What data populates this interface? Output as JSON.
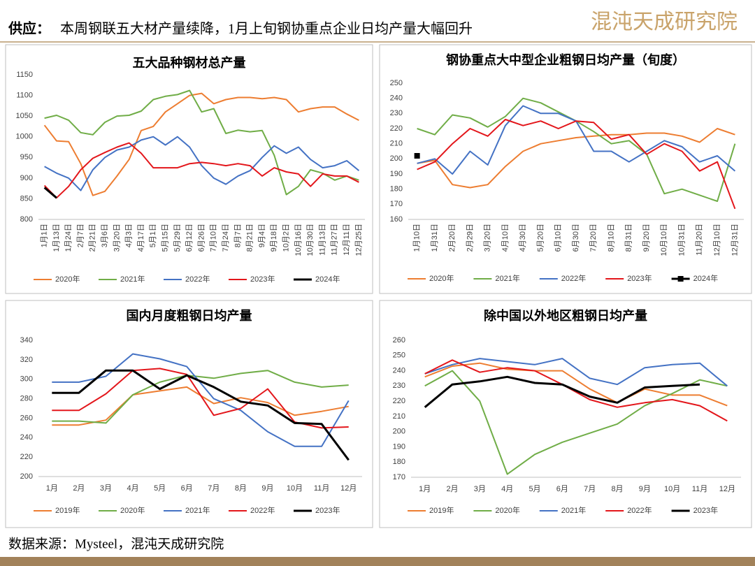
{
  "header": {
    "label": "供应：",
    "title": "本周钢联五大材产量续降，1月上旬钢协重点企业日均产量大幅回升",
    "logo": "混沌天成研究院"
  },
  "footer": {
    "source": "数据来源：Mysteel，混沌天成研究院"
  },
  "chart_data": [
    {
      "type": "line",
      "title": "五大品种钢材总产量",
      "categories": [
        "1月1日",
        "1月13日",
        "1月24日",
        "2月7日",
        "2月21日",
        "3月6日",
        "3月20日",
        "4月3日",
        "4月17日",
        "5月1日",
        "5月15日",
        "5月29日",
        "6月12日",
        "6月26日",
        "7月10日",
        "7月24日",
        "8月7日",
        "8月21日",
        "9月4日",
        "9月18日",
        "10月2日",
        "10月16日",
        "10月30日",
        "11月13日",
        "11月27日",
        "12月11日",
        "12月25日"
      ],
      "ylim": [
        800,
        1150
      ],
      "yticks": [
        800,
        850,
        900,
        950,
        1000,
        1050,
        1100,
        1150
      ],
      "series": [
        {
          "name": "2020年",
          "color": "#ed7d31",
          "values": [
            1028,
            990,
            988,
            935,
            858,
            868,
            905,
            945,
            1015,
            1025,
            1060,
            1080,
            1100,
            1105,
            1080,
            1090,
            1095,
            1095,
            1092,
            1095,
            1090,
            1060,
            1068,
            1072,
            1072,
            1055,
            1040
          ]
        },
        {
          "name": "2021年",
          "color": "#70ad47",
          "values": [
            1045,
            1052,
            1040,
            1010,
            1005,
            1035,
            1050,
            1052,
            1062,
            1090,
            1098,
            1102,
            1112,
            1060,
            1068,
            1008,
            1016,
            1012,
            1015,
            955,
            860,
            880,
            920,
            912,
            895,
            905,
            895
          ]
        },
        {
          "name": "2022年",
          "color": "#4472c4",
          "values": [
            928,
            912,
            900,
            870,
            920,
            950,
            968,
            975,
            992,
            1000,
            980,
            1000,
            975,
            930,
            900,
            885,
            905,
            918,
            950,
            978,
            960,
            975,
            945,
            925,
            930,
            942,
            918
          ]
        },
        {
          "name": "2023年",
          "color": "#e3161b",
          "values": [
            882,
            852,
            880,
            920,
            948,
            962,
            975,
            985,
            960,
            925,
            925,
            925,
            935,
            938,
            935,
            930,
            935,
            930,
            905,
            925,
            915,
            910,
            880,
            910,
            905,
            905,
            890
          ]
        },
        {
          "name": "2024年",
          "color": "#000000",
          "values": [
            877,
            852,
            null,
            null,
            null,
            null,
            null,
            null,
            null,
            null,
            null,
            null,
            null,
            null,
            null,
            null,
            null,
            null,
            null,
            null,
            null,
            null,
            null,
            null,
            null,
            null,
            null
          ]
        }
      ]
    },
    {
      "type": "line",
      "title": "钢协重点大中型企业粗钢日均产量（旬度）",
      "categories": [
        "1月10日",
        "1月31日",
        "2月20日",
        "2月29日",
        "3月20日",
        "4月10日",
        "4月30日",
        "5月20日",
        "6月10日",
        "6月30日",
        "7月20日",
        "8月10日",
        "8月31日",
        "9月20日",
        "10月10日",
        "10月31日",
        "11月20日",
        "12月10日",
        "12月31日"
      ],
      "ylim": [
        160,
        250
      ],
      "yticks": [
        160,
        170,
        180,
        190,
        200,
        210,
        220,
        230,
        240,
        250
      ],
      "series": [
        {
          "name": "2020年",
          "color": "#ed7d31",
          "values": [
            197,
            199,
            183,
            181,
            183,
            195,
            205,
            210,
            212,
            214,
            215,
            216,
            216,
            217,
            217,
            215,
            211,
            220,
            216
          ]
        },
        {
          "name": "2021年",
          "color": "#70ad47",
          "values": [
            220,
            216,
            229,
            227,
            221,
            228,
            240,
            237,
            231,
            225,
            218,
            210,
            212,
            203,
            177,
            180,
            176,
            172,
            210
          ]
        },
        {
          "name": "2022年",
          "color": "#4472c4",
          "values": [
            197,
            200,
            190,
            205,
            196,
            222,
            235,
            230,
            230,
            225,
            205,
            205,
            198,
            205,
            212,
            208,
            198,
            202,
            192
          ]
        },
        {
          "name": "2023年",
          "color": "#e3161b",
          "values": [
            193,
            198,
            210,
            220,
            215,
            226,
            222,
            225,
            220,
            225,
            224,
            213,
            216,
            203,
            210,
            205,
            192,
            198,
            167
          ]
        },
        {
          "name": "2024年",
          "color": "#000000",
          "marker": "square",
          "values": [
            202,
            null,
            null,
            null,
            null,
            null,
            null,
            null,
            null,
            null,
            null,
            null,
            null,
            null,
            null,
            null,
            null,
            null,
            null
          ]
        }
      ]
    },
    {
      "type": "line",
      "title": "国内月度粗钢日均产量",
      "categories": [
        "1月",
        "2月",
        "3月",
        "4月",
        "5月",
        "6月",
        "7月",
        "8月",
        "9月",
        "10月",
        "11月",
        "12月"
      ],
      "ylim": [
        200,
        340
      ],
      "yticks": [
        200,
        220,
        240,
        260,
        280,
        300,
        320,
        340
      ],
      "series": [
        {
          "name": "2019年",
          "color": "#ed7d31",
          "values": [
            253,
            253,
            258,
            284,
            288,
            292,
            275,
            281,
            276,
            263,
            267,
            272
          ]
        },
        {
          "name": "2020年",
          "color": "#70ad47",
          "values": [
            257,
            257,
            255,
            284,
            297,
            304,
            301,
            306,
            309,
            297,
            292,
            294
          ]
        },
        {
          "name": "2021年",
          "color": "#4472c4",
          "values": [
            297,
            297,
            303,
            326,
            321,
            313,
            280,
            268,
            246,
            231,
            231,
            278
          ]
        },
        {
          "name": "2022年",
          "color": "#e3161b",
          "values": [
            268,
            268,
            285,
            309,
            311,
            305,
            263,
            270,
            290,
            256,
            250,
            251
          ]
        },
        {
          "name": "2023年",
          "color": "#000000",
          "values": [
            286,
            286,
            309,
            309,
            290,
            304,
            292,
            277,
            273,
            255,
            254,
            217
          ]
        }
      ]
    },
    {
      "type": "line",
      "title": "除中国以外地区粗钢日均产量",
      "categories": [
        "1月",
        "2月",
        "3月",
        "4月",
        "5月",
        "6月",
        "7月",
        "8月",
        "9月",
        "10月",
        "11月",
        "12月"
      ],
      "ylim": [
        170,
        260
      ],
      "yticks": [
        170,
        180,
        190,
        200,
        210,
        220,
        230,
        240,
        250,
        260
      ],
      "series": [
        {
          "name": "2019年",
          "color": "#ed7d31",
          "values": [
            236,
            243,
            245,
            241,
            240,
            240,
            228,
            219,
            228,
            224,
            224,
            217
          ]
        },
        {
          "name": "2020年",
          "color": "#70ad47",
          "values": [
            230,
            240,
            220,
            172,
            185,
            193,
            199,
            205,
            217,
            225,
            234,
            230
          ]
        },
        {
          "name": "2021年",
          "color": "#4472c4",
          "values": [
            238,
            244,
            248,
            246,
            244,
            248,
            235,
            231,
            242,
            244,
            245,
            230
          ]
        },
        {
          "name": "2022年",
          "color": "#e3161b",
          "values": [
            238,
            247,
            239,
            242,
            240,
            231,
            221,
            216,
            219,
            221,
            217,
            207
          ]
        },
        {
          "name": "2023年",
          "color": "#000000",
          "values": [
            216,
            231,
            233,
            236,
            232,
            231,
            223,
            219,
            229,
            230,
            231,
            null
          ]
        }
      ]
    }
  ]
}
